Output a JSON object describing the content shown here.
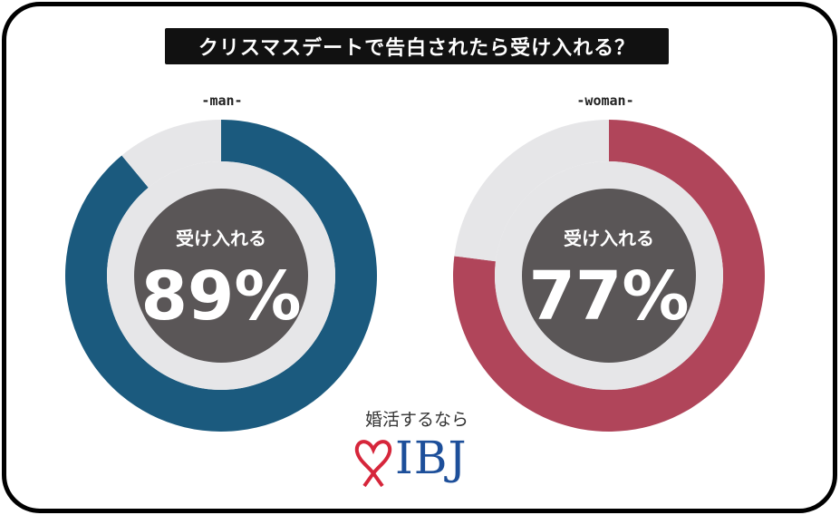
{
  "title": "クリスマスデートで告白されたら受け入れる？",
  "chart_data": [
    {
      "type": "pie",
      "label": "-man-",
      "center_label": "受け入れる",
      "value_label": "89%",
      "categories": [
        "受け入れる",
        ""
      ],
      "values": [
        89,
        11
      ],
      "colors": [
        "#1b5a7e",
        "#e6e6e8"
      ]
    },
    {
      "type": "pie",
      "label": "-woman-",
      "center_label": "受け入れる",
      "value_label": "77%",
      "categories": [
        "受け入れる",
        ""
      ],
      "values": [
        77,
        23
      ],
      "colors": [
        "#b0455a",
        "#e6e6e8"
      ]
    }
  ],
  "colors": {
    "center_fill": "#5a5657",
    "inner_ring": "#e6e6e8",
    "logo_red": "#d6263b",
    "logo_blue": "#1d4f9a"
  },
  "logo": {
    "tagline": "婚活するなら",
    "text": "IBJ",
    "mark_icon": "heart-ribbon-icon"
  }
}
